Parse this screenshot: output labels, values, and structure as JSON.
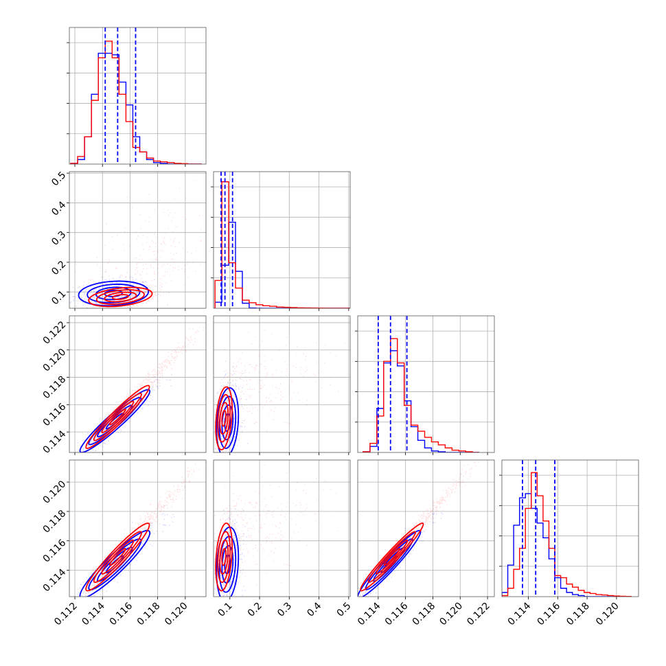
{
  "figure": {
    "background": "#ffffff"
  },
  "chart_data": {
    "type": "corner",
    "grid": true,
    "series": [
      {
        "color": "#0000ff"
      },
      {
        "color": "#ff0000"
      }
    ],
    "parameters": [
      {
        "range": [
          0.1116,
          0.1215
        ],
        "ticks": [
          0.112,
          0.114,
          0.116,
          0.118,
          0.12
        ],
        "tick_labels": [
          "0.112",
          "0.114",
          "0.116",
          "0.118",
          "0.120"
        ],
        "quantiles": [
          0.1142,
          0.1151,
          0.1164
        ],
        "hist_edges": [
          0.1117,
          0.1122,
          0.1127,
          0.1132,
          0.1137,
          0.1142,
          0.1147,
          0.1152,
          0.1157,
          0.1162,
          0.1167,
          0.1172,
          0.1177,
          0.1182,
          0.1187,
          0.1192,
          0.1197,
          0.1202,
          0.1207,
          0.1212
        ],
        "hist": [
          [
            0.5,
            3,
            18,
            46,
            73,
            73,
            72,
            54,
            39,
            18,
            8,
            3,
            1,
            0.5,
            0,
            0,
            0,
            0,
            0
          ],
          [
            0.5,
            5,
            18,
            42,
            70,
            81,
            70,
            46,
            28,
            11,
            8,
            4,
            2,
            1.5,
            1,
            0.5,
            0.3,
            0,
            0
          ]
        ],
        "hist_ymax": 90
      },
      {
        "range": [
          0.045,
          0.505
        ],
        "ticks": [
          0.1,
          0.2,
          0.3,
          0.4,
          0.5
        ],
        "tick_labels": [
          "0.1",
          "0.2",
          "0.3",
          "0.4",
          "0.5"
        ],
        "quantiles": [
          0.0705,
          0.0835,
          0.109
        ],
        "hist_edges": [
          0.05,
          0.073,
          0.096,
          0.119,
          0.142,
          0.165,
          0.188,
          0.211,
          0.234,
          0.257,
          0.28,
          0.303,
          0.326,
          0.349,
          0.372,
          0.395,
          0.418,
          0.441,
          0.464,
          0.487,
          0.505
        ],
        "hist": [
          [
            12,
            85,
            170,
            73,
            10,
            0.5,
            0,
            0,
            0,
            0,
            0,
            0,
            0,
            0,
            0,
            0,
            0,
            0,
            0,
            0
          ],
          [
            55,
            250,
            90,
            40,
            16,
            11,
            7,
            5,
            4,
            2.5,
            2,
            1.5,
            1,
            0.8,
            0.6,
            0.4,
            0.3,
            0.3,
            0.2,
            0.2
          ]
        ],
        "hist_ymax": 270
      },
      {
        "range": [
          0.1125,
          0.1225
        ],
        "ticks": [
          0.114,
          0.116,
          0.118,
          0.12,
          0.122
        ],
        "tick_labels": [
          "0.114",
          "0.116",
          "0.118",
          "0.120",
          "0.122"
        ],
        "quantiles": [
          0.114,
          0.1149,
          0.1161
        ],
        "hist_edges": [
          0.1129,
          0.1134,
          0.1139,
          0.1144,
          0.1149,
          0.1154,
          0.1159,
          0.1164,
          0.1169,
          0.1174,
          0.1179,
          0.1184,
          0.1189,
          0.1194,
          0.1199,
          0.1204,
          0.1209,
          0.1214
        ],
        "hist": [
          [
            0.5,
            4,
            29,
            59,
            67,
            57,
            34,
            17,
            8,
            3,
            1,
            0.5,
            0,
            0,
            0,
            0,
            0
          ],
          [
            0.5,
            6,
            24,
            60,
            75,
            59,
            31,
            18,
            14,
            10,
            7,
            5,
            3,
            1.5,
            1,
            0.5,
            0
          ]
        ],
        "hist_ymax": 90
      },
      {
        "range": [
          0.1122,
          0.1215
        ],
        "ticks": [
          0.114,
          0.116,
          0.118,
          0.12
        ],
        "tick_labels": [
          "0.114",
          "0.116",
          "0.118",
          "0.120"
        ],
        "quantiles": [
          0.1136,
          0.1145,
          0.1158
        ],
        "hist_edges": [
          0.1122,
          0.1126,
          0.113,
          0.1134,
          0.1138,
          0.1142,
          0.1146,
          0.115,
          0.1154,
          0.1158,
          0.1162,
          0.1166,
          0.117,
          0.1174,
          0.1178,
          0.1182,
          0.1186,
          0.119,
          0.1194,
          0.1198,
          0.1202,
          0.1206,
          0.121
        ],
        "hist": [
          [
            2,
            15,
            34,
            47,
            49,
            42,
            35,
            28,
            18,
            9,
            4,
            2,
            1,
            0.5,
            0,
            0,
            0,
            0,
            0,
            0,
            0,
            0
          ],
          [
            0.5,
            4,
            13,
            23,
            42,
            59,
            48,
            36,
            23,
            10,
            9,
            6,
            4.5,
            3,
            2,
            1.5,
            1,
            0.8,
            0.5,
            0.3,
            0.2,
            0.1
          ]
        ],
        "hist_ymax": 65
      }
    ],
    "pairs": [
      {
        "row": 1,
        "col": 0,
        "blue": {
          "center": [
            0.1148,
            0.095
          ],
          "sd": [
            0.0011,
            0.018
          ],
          "rho": 0.15
        },
        "red": {
          "center": [
            0.1153,
            0.083
          ],
          "sd": [
            0.001,
            0.014
          ],
          "rho": 0.35,
          "tail_center": [
            0.1172,
            0.22
          ],
          "tail_sd": [
            0.0015,
            0.08
          ]
        }
      },
      {
        "row": 2,
        "col": 0,
        "blue": {
          "center": [
            0.1149,
            0.1148
          ],
          "sd": [
            0.0011,
            0.001
          ],
          "rho": 0.95
        },
        "red": {
          "center": [
            0.1151,
            0.1151
          ],
          "sd": [
            0.001,
            0.001
          ],
          "rho": 0.96,
          "tail_center": [
            0.118,
            0.1185
          ],
          "tail_sd": [
            0.001,
            0.001
          ]
        }
      },
      {
        "row": 2,
        "col": 1,
        "blue": {
          "center": [
            0.092,
            0.1147
          ],
          "sd": [
            0.016,
            0.0011
          ],
          "rho": 0.2
        },
        "red": {
          "center": [
            0.08,
            0.115
          ],
          "sd": [
            0.012,
            0.001
          ],
          "rho": 0.3,
          "tail_center": [
            0.2,
            0.1175
          ],
          "tail_sd": [
            0.08,
            0.0015
          ]
        }
      },
      {
        "row": 3,
        "col": 0,
        "blue": {
          "center": [
            0.1149,
            0.1144
          ],
          "sd": [
            0.0011,
            0.001
          ],
          "rho": 0.93
        },
        "red": {
          "center": [
            0.1151,
            0.1149
          ],
          "sd": [
            0.001,
            0.001
          ],
          "rho": 0.95,
          "tail_center": [
            0.118,
            0.1182
          ],
          "tail_sd": [
            0.001,
            0.001
          ]
        }
      },
      {
        "row": 3,
        "col": 1,
        "blue": {
          "center": [
            0.092,
            0.1144
          ],
          "sd": [
            0.016,
            0.0011
          ],
          "rho": 0.2
        },
        "red": {
          "center": [
            0.08,
            0.1149
          ],
          "sd": [
            0.012,
            0.001
          ],
          "rho": 0.3,
          "tail_center": [
            0.2,
            0.1172
          ],
          "tail_sd": [
            0.08,
            0.0015
          ]
        }
      },
      {
        "row": 3,
        "col": 2,
        "blue": {
          "center": [
            0.1148,
            0.1144
          ],
          "sd": [
            0.001,
            0.001
          ],
          "rho": 0.96
        },
        "red": {
          "center": [
            0.115,
            0.1149
          ],
          "sd": [
            0.001,
            0.001
          ],
          "rho": 0.97,
          "tail_center": [
            0.118,
            0.1182
          ],
          "tail_sd": [
            0.001,
            0.001
          ]
        }
      }
    ],
    "contour_levels_sigma": [
      0.5,
      1.0,
      1.5,
      2.0
    ]
  }
}
